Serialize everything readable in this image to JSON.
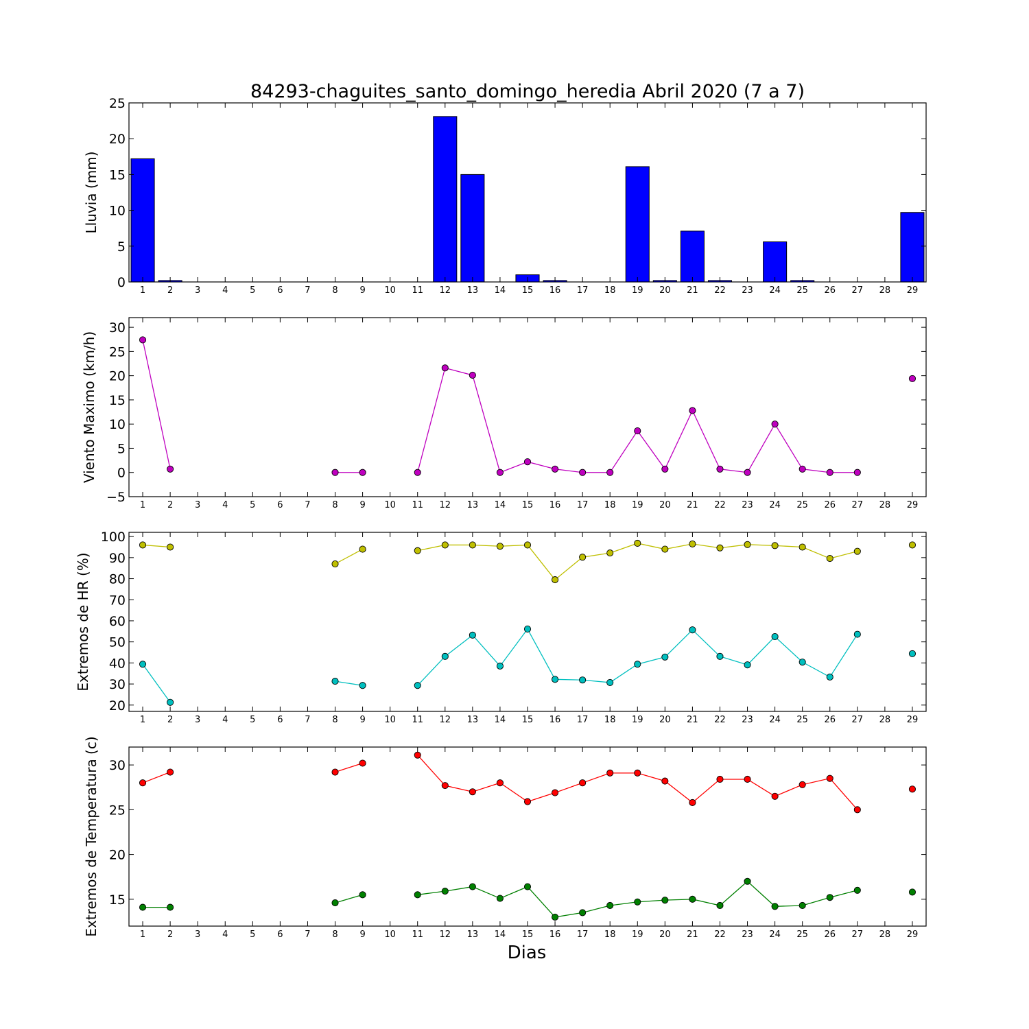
{
  "figure": {
    "title": "84293-chaguites_santo_domingo_heredia Abril 2020  (7 a 7)",
    "xlabel": "Dias"
  },
  "days": [
    1,
    2,
    3,
    4,
    5,
    6,
    7,
    8,
    9,
    10,
    11,
    12,
    13,
    14,
    15,
    16,
    17,
    18,
    19,
    20,
    21,
    22,
    23,
    24,
    25,
    26,
    27,
    28,
    29
  ],
  "chart_data": [
    {
      "type": "bar",
      "ylabel": "Lluvia (mm)",
      "ylim": [
        0,
        25
      ],
      "yticks": [
        0,
        5,
        10,
        15,
        20,
        25
      ],
      "series": [
        {
          "color": "#0000ff",
          "values": [
            17.2,
            0.2,
            0,
            0,
            0,
            0,
            0,
            0,
            0,
            0,
            0,
            23.1,
            15.0,
            0,
            1.0,
            0.2,
            0,
            0,
            16.1,
            0.2,
            7.1,
            0.2,
            0,
            5.6,
            0.2,
            0,
            0,
            null,
            9.7
          ]
        }
      ]
    },
    {
      "type": "line",
      "ylabel": "Viento Maximo (km/h)",
      "ylim": [
        -5,
        32
      ],
      "yticks": [
        -5,
        0,
        5,
        10,
        15,
        20,
        25,
        30
      ],
      "series": [
        {
          "color": "#bf00bf",
          "values": [
            27.4,
            0.7,
            null,
            null,
            null,
            null,
            null,
            0,
            0,
            null,
            0,
            21.6,
            20.1,
            0,
            2.2,
            0.7,
            0,
            0,
            8.6,
            0.7,
            12.8,
            0.7,
            0,
            10.0,
            0.7,
            0,
            0,
            null,
            19.4
          ]
        }
      ]
    },
    {
      "type": "line",
      "ylabel": "Extremos de HR (%)",
      "ylim": [
        17,
        102
      ],
      "yticks": [
        20,
        30,
        40,
        50,
        60,
        70,
        80,
        90,
        100
      ],
      "series": [
        {
          "color": "#bfbf00",
          "values": [
            96,
            95,
            null,
            null,
            null,
            null,
            null,
            87,
            94,
            null,
            93.3,
            96,
            96,
            95.4,
            96,
            79.5,
            90.2,
            92.2,
            96.8,
            94,
            96.5,
            94.6,
            96.2,
            95.7,
            95,
            89.6,
            93,
            null,
            96
          ]
        },
        {
          "color": "#00bfbf",
          "values": [
            39.4,
            21.3,
            null,
            null,
            null,
            null,
            null,
            31.3,
            29.3,
            null,
            29.3,
            43.1,
            53.2,
            38.5,
            56.1,
            32.2,
            31.9,
            30.7,
            39.4,
            42.8,
            55.7,
            43.1,
            39.1,
            52.5,
            40.4,
            33.3,
            53.6,
            null,
            44.4
          ]
        }
      ]
    },
    {
      "type": "line",
      "ylabel": "Extremos de Temperatura (c)",
      "ylim": [
        12,
        32
      ],
      "yticks": [
        15,
        20,
        25,
        30
      ],
      "series": [
        {
          "color": "#ff0000",
          "values": [
            28.0,
            29.2,
            null,
            null,
            null,
            null,
            null,
            29.2,
            30.2,
            null,
            31.1,
            27.7,
            27.0,
            28.0,
            25.9,
            26.9,
            28.0,
            29.1,
            29.1,
            28.2,
            25.8,
            28.4,
            28.4,
            26.5,
            27.8,
            28.5,
            25.0,
            null,
            27.3
          ]
        },
        {
          "color": "#008000",
          "values": [
            14.1,
            14.1,
            null,
            null,
            null,
            null,
            null,
            14.6,
            15.5,
            null,
            15.5,
            15.9,
            16.4,
            15.1,
            16.4,
            13.0,
            13.5,
            14.3,
            14.7,
            14.9,
            15.0,
            14.3,
            17.0,
            14.2,
            14.3,
            15.2,
            16.0,
            null,
            15.8
          ]
        }
      ]
    }
  ]
}
